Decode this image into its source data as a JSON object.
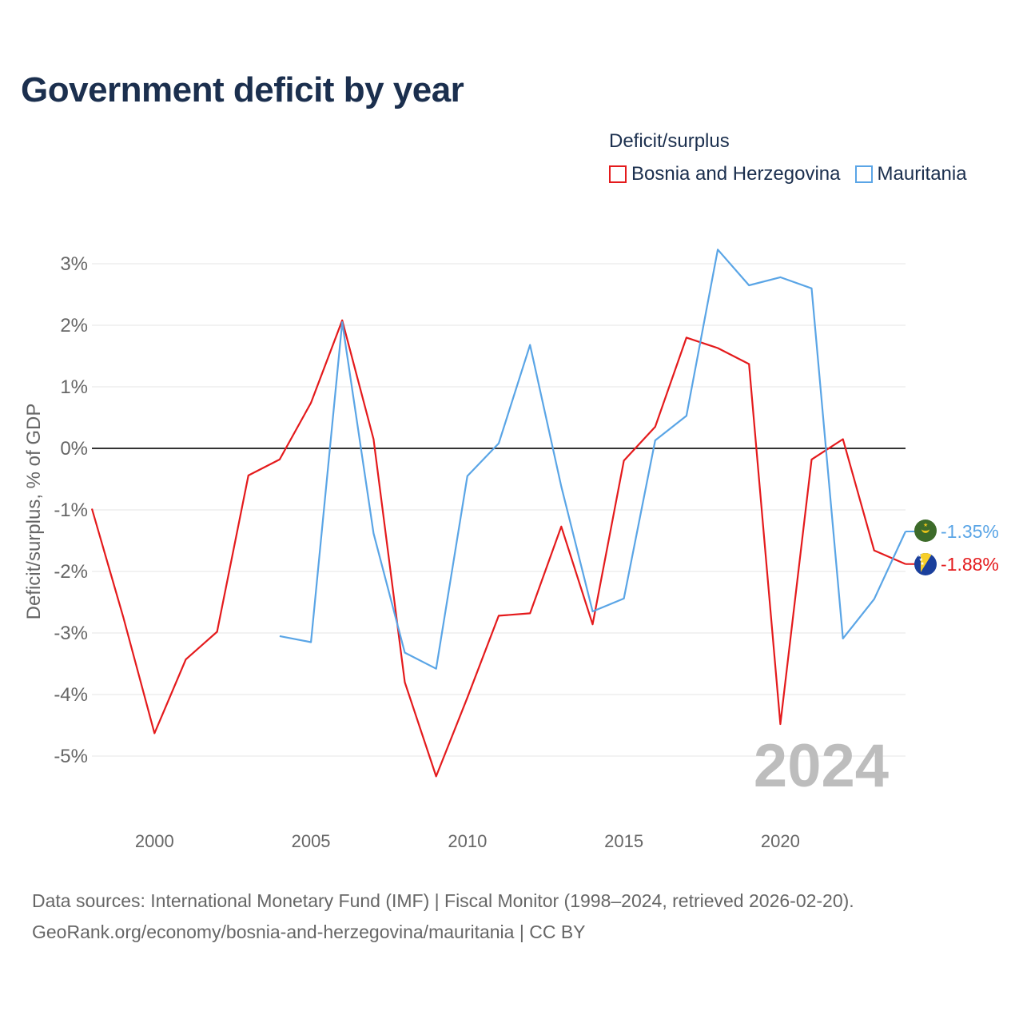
{
  "title": "Government deficit by year",
  "legend": {
    "title": "Deficit/surplus",
    "items": [
      {
        "label": "Bosnia and Herzegovina",
        "color": "#e41a1c"
      },
      {
        "label": "Mauritania",
        "color": "#5aa5e6"
      }
    ]
  },
  "chart_data": {
    "type": "line",
    "ylabel": "Deficit/surplus, % of GDP",
    "xlabel": "",
    "xlim": [
      1998,
      2024
    ],
    "ylim": [
      -6.0,
      3.4
    ],
    "x_ticks": [
      2000,
      2005,
      2010,
      2015,
      2020
    ],
    "y_ticks": [
      3,
      2,
      1,
      0,
      -1,
      -2,
      -3,
      -4,
      -5
    ],
    "y_tick_labels": [
      "3%",
      "2%",
      "1%",
      "0%",
      "-1%",
      "-2%",
      "-3%",
      "-4%",
      "-5%"
    ],
    "year_watermark": "2024",
    "series": [
      {
        "name": "Bosnia and Herzegovina",
        "color": "#e41a1c",
        "end_label": "-1.88%",
        "x": [
          1998,
          1999,
          2000,
          2001,
          2002,
          2003,
          2004,
          2005,
          2006,
          2007,
          2008,
          2009,
          2010,
          2011,
          2012,
          2013,
          2014,
          2015,
          2016,
          2017,
          2018,
          2019,
          2020,
          2021,
          2022,
          2023,
          2024
        ],
        "values": [
          -0.98,
          -2.74,
          -4.63,
          -3.43,
          -2.98,
          -0.44,
          -0.18,
          0.74,
          2.08,
          0.15,
          -3.8,
          -5.33,
          -4.05,
          -2.72,
          -2.68,
          -1.27,
          -2.86,
          -0.2,
          0.35,
          1.8,
          1.63,
          1.37,
          -4.48,
          -0.18,
          0.15,
          -1.66,
          -1.88
        ]
      },
      {
        "name": "Mauritania",
        "color": "#5aa5e6",
        "end_label": "-1.35%",
        "x": [
          2004,
          2005,
          2006,
          2007,
          2008,
          2009,
          2010,
          2011,
          2012,
          2013,
          2014,
          2015,
          2016,
          2017,
          2018,
          2019,
          2020,
          2021,
          2022,
          2023,
          2024
        ],
        "values": [
          -3.05,
          -3.15,
          2.05,
          -1.38,
          -3.32,
          -3.58,
          -0.45,
          0.08,
          1.68,
          -0.62,
          -2.65,
          -2.44,
          0.13,
          0.53,
          3.23,
          2.65,
          2.78,
          2.6,
          -3.09,
          -2.45,
          -1.35
        ]
      }
    ]
  },
  "source": {
    "line1": "Data sources: International Monetary Fund (IMF) | Fiscal Monitor (1998–2024, retrieved 2026-02-20).",
    "line2": "GeoRank.org/economy/bosnia-and-herzegovina/mauritania | CC BY"
  }
}
